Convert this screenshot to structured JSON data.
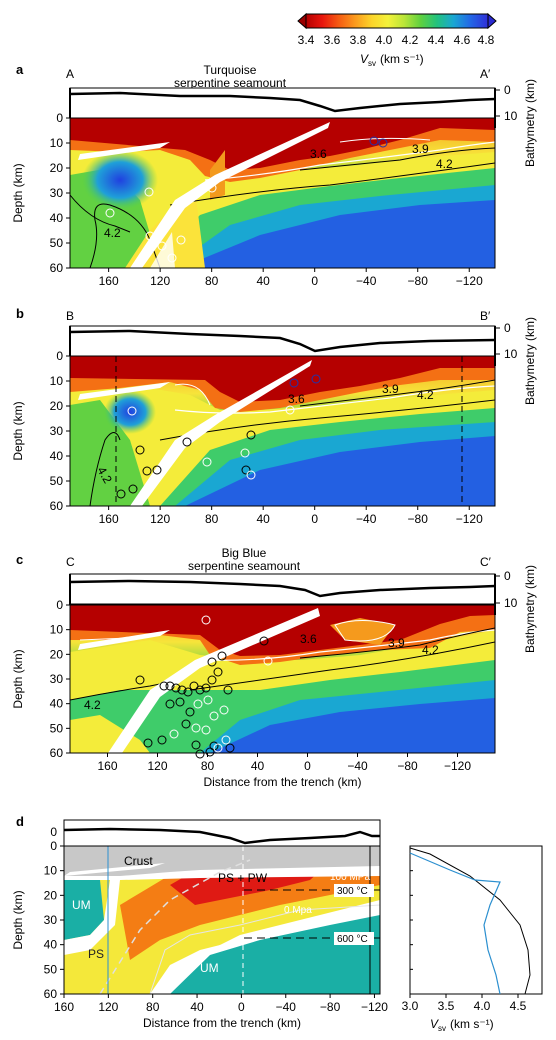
{
  "colorbar": {
    "ticks": [
      "3.4",
      "3.6",
      "3.8",
      "4.0",
      "4.2",
      "4.4",
      "4.6",
      "4.8"
    ],
    "label_v": "V",
    "label_sub": "sv",
    "label_unit": "(km s⁻¹)",
    "colors": [
      "#b50000",
      "#e8160d",
      "#f55b12",
      "#fb9a1d",
      "#fcd42a",
      "#f4f23a",
      "#b9e538",
      "#5fd13f",
      "#22c27e",
      "#1aa7d2",
      "#2269e6",
      "#2f2fd8"
    ]
  },
  "panels": [
    {
      "letter": "a",
      "left_label": "A",
      "right_label": "A′",
      "title_line1": "Turquoise",
      "title_line2": "serpentine seamount",
      "contours": [
        "3.6",
        "3.9",
        "4.2",
        "4.2"
      ],
      "x_ticks": [
        "160",
        "120",
        "80",
        "40",
        "0",
        "−40",
        "−80",
        "−120"
      ]
    },
    {
      "letter": "b",
      "left_label": "B",
      "right_label": "B′",
      "contours": [
        "3.6",
        "3.9",
        "4.2",
        "4.2"
      ],
      "x_ticks": [
        "160",
        "120",
        "80",
        "40",
        "0",
        "−40",
        "−80",
        "−120"
      ]
    },
    {
      "letter": "c",
      "left_label": "C",
      "right_label": "C′",
      "title_line1": "Big Blue",
      "title_line2": "serpentine seamount",
      "contours": [
        "3.6",
        "3.9",
        "4.2",
        "4.2"
      ],
      "x_ticks": [
        "160",
        "120",
        "80",
        "40",
        "0",
        "−40",
        "−80",
        "−120"
      ]
    },
    {
      "letter": "d",
      "labels": {
        "crust": "Crust",
        "um_left": "UM",
        "ps": "PS",
        "ps_pw": "PS + PW",
        "um_center": "UM",
        "mpa100": "100 MPa",
        "mpa0": "0 Mpa",
        "t300": "300 °C",
        "t600": "600 °C"
      },
      "x_ticks": [
        "160",
        "120",
        "80",
        "40",
        "0",
        "−40",
        "−80",
        "−120"
      ]
    }
  ],
  "axes": {
    "depth_label": "Depth (km)",
    "depth_ticks": [
      "0",
      "10",
      "20",
      "30",
      "40",
      "50",
      "60"
    ],
    "bathy_label": "Bathymetry (km)",
    "bathy_ticks": [
      "0",
      "10"
    ],
    "distance_label": "Distance from the trench (km)"
  },
  "profile_panel": {
    "x_ticks": [
      "3.0",
      "3.5",
      "4.0",
      "4.5"
    ],
    "xlabel_v": "V",
    "xlabel_sub": "sv",
    "xlabel_unit": "(km s⁻¹)",
    "line_colors": [
      "#000000",
      "#2b8fcf"
    ]
  }
}
